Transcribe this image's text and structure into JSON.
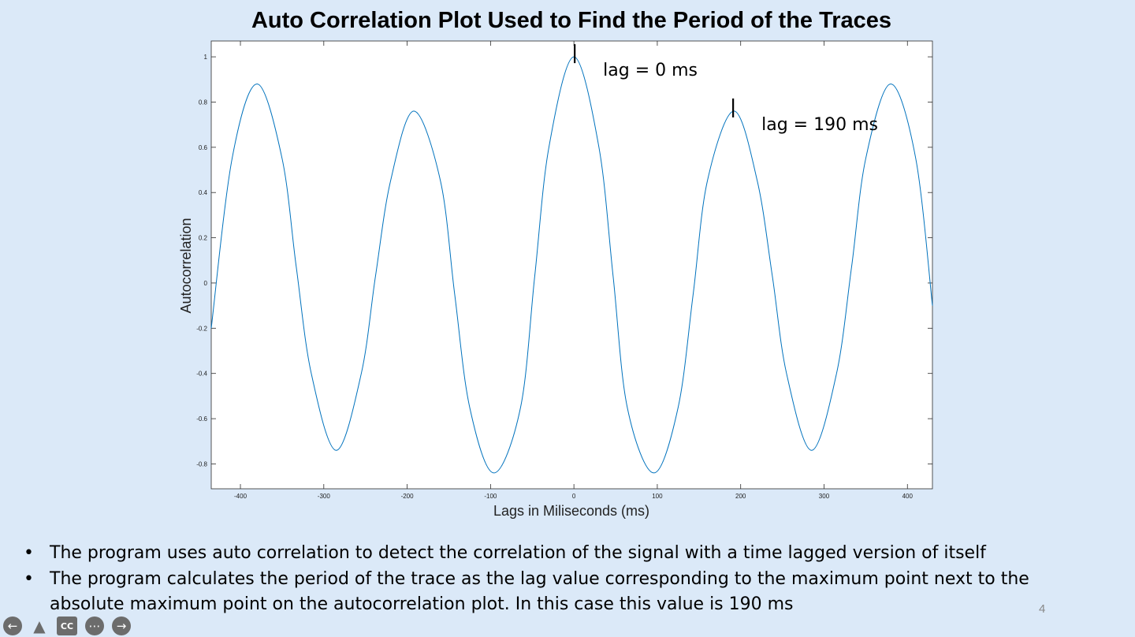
{
  "slide": {
    "title": "Auto Correlation Plot Used to Find the Period of the Traces",
    "page_number": "4",
    "bullets": [
      "The program uses auto correlation to detect the correlation of the signal with a time lagged version of itself",
      "The program calculates the period of the trace as the lag value corresponding to the maximum point next to the absolute maximum point on the autocorrelation plot. In this case this value is 190 ms"
    ]
  },
  "player_controls": [
    {
      "name": "previous-icon",
      "glyph": "←"
    },
    {
      "name": "pointer-icon",
      "glyph": "▲"
    },
    {
      "name": "captions-icon",
      "glyph": "CC"
    },
    {
      "name": "more-options-icon",
      "glyph": "⋯"
    },
    {
      "name": "next-icon",
      "glyph": "→"
    }
  ],
  "chart_data": {
    "type": "line",
    "xlabel": "Lags in Miliseconds (ms)",
    "ylabel": "Autocorrelation",
    "xlim": [
      -435,
      430
    ],
    "ylim": [
      -0.91,
      1.07
    ],
    "xticks": [
      -400,
      -300,
      -200,
      -100,
      0,
      100,
      200,
      300,
      400
    ],
    "yticks": [
      -0.8,
      -0.6,
      -0.4,
      -0.2,
      0,
      0.2,
      0.4,
      0.6,
      0.8,
      1
    ],
    "line_color": "#0072bd",
    "grid": false,
    "series": [
      {
        "name": "",
        "x": [
          -435,
          -410,
          -380,
          -350,
          -333,
          -315,
          -285,
          -255,
          -238,
          -220,
          -192,
          -160,
          -143,
          -125,
          -96,
          -64,
          -47,
          -30,
          0,
          30,
          47,
          64,
          96,
          125,
          143,
          160,
          192,
          220,
          238,
          255,
          285,
          315,
          333,
          350,
          380,
          410,
          430
        ],
        "y": [
          -0.2,
          0.55,
          0.88,
          0.55,
          0.07,
          -0.4,
          -0.74,
          -0.4,
          0.03,
          0.45,
          0.76,
          0.45,
          -0.05,
          -0.55,
          -0.84,
          -0.55,
          0.03,
          0.6,
          1.0,
          0.6,
          0.03,
          -0.55,
          -0.84,
          -0.55,
          -0.05,
          0.45,
          0.76,
          0.45,
          0.03,
          -0.4,
          -0.74,
          -0.4,
          0.07,
          0.55,
          0.88,
          0.55,
          -0.1
        ]
      }
    ],
    "annotations": [
      {
        "text": "lag = 0 ms",
        "x": 0,
        "y": 1.0
      },
      {
        "text": "lag = 190 ms",
        "x": 190,
        "y": 0.76
      }
    ]
  }
}
